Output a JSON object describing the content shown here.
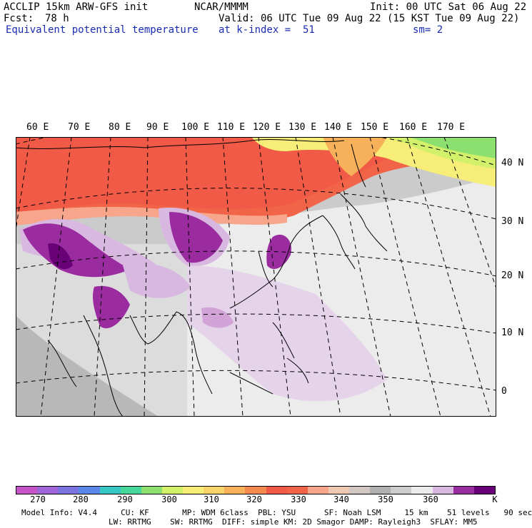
{
  "header": {
    "title": "ACCLIP 15km ARW-GFS init",
    "center": "NCAR/MMMM",
    "init": "Init: 00 UTC Sat 06 Aug 22",
    "fcst_label": "Fcst:",
    "fcst_value": "78 h",
    "valid": "Valid: 06 UTC Tue 09 Aug 22 (15 KST Tue 09 Aug 22)",
    "field": "Equivalent potential temperature",
    "level": "at k-index =  51",
    "smoothing": "sm= 2"
  },
  "map": {
    "lon_labels": [
      "60 E",
      "70 E",
      "80 E",
      "90 E",
      "100 E",
      "110 E",
      "120 E",
      "130 E",
      "140 E",
      "150 E",
      "160 E",
      "170 E"
    ],
    "lat_labels": [
      "40 N",
      "30 N",
      "20 N",
      "10 N",
      "0"
    ]
  },
  "colorbar": {
    "colors": [
      "#c454c8",
      "#a066d8",
      "#7a73e0",
      "#5b86ea",
      "#36c6c4",
      "#46d89a",
      "#8ce070",
      "#d2f06a",
      "#f6ee78",
      "#f9d46a",
      "#f7b15a",
      "#f68a50",
      "#f05a46",
      "#f26448",
      "#f7a68c",
      "#eec8b0",
      "#d2c7c3",
      "#b0b0b0",
      "#cdcdcd",
      "#ececec",
      "#d8b8e0",
      "#9a2ca0",
      "#6a0078"
    ],
    "ticks": [
      "270",
      "280",
      "290",
      "300",
      "310",
      "320",
      "330",
      "340",
      "350",
      "360",
      "K"
    ]
  },
  "footer": {
    "line1": "Model Info: V4.4     CU: KF       MP: WDM 6class  PBL: YSU      SF: Noah LSM     15 km    51 levels   90 sec",
    "line2": "LW: RRTMG    SW: RRTMG  DIFF: simple KM: 2D Smagor DAMP: Rayleigh3  SFLAY: MM5"
  }
}
